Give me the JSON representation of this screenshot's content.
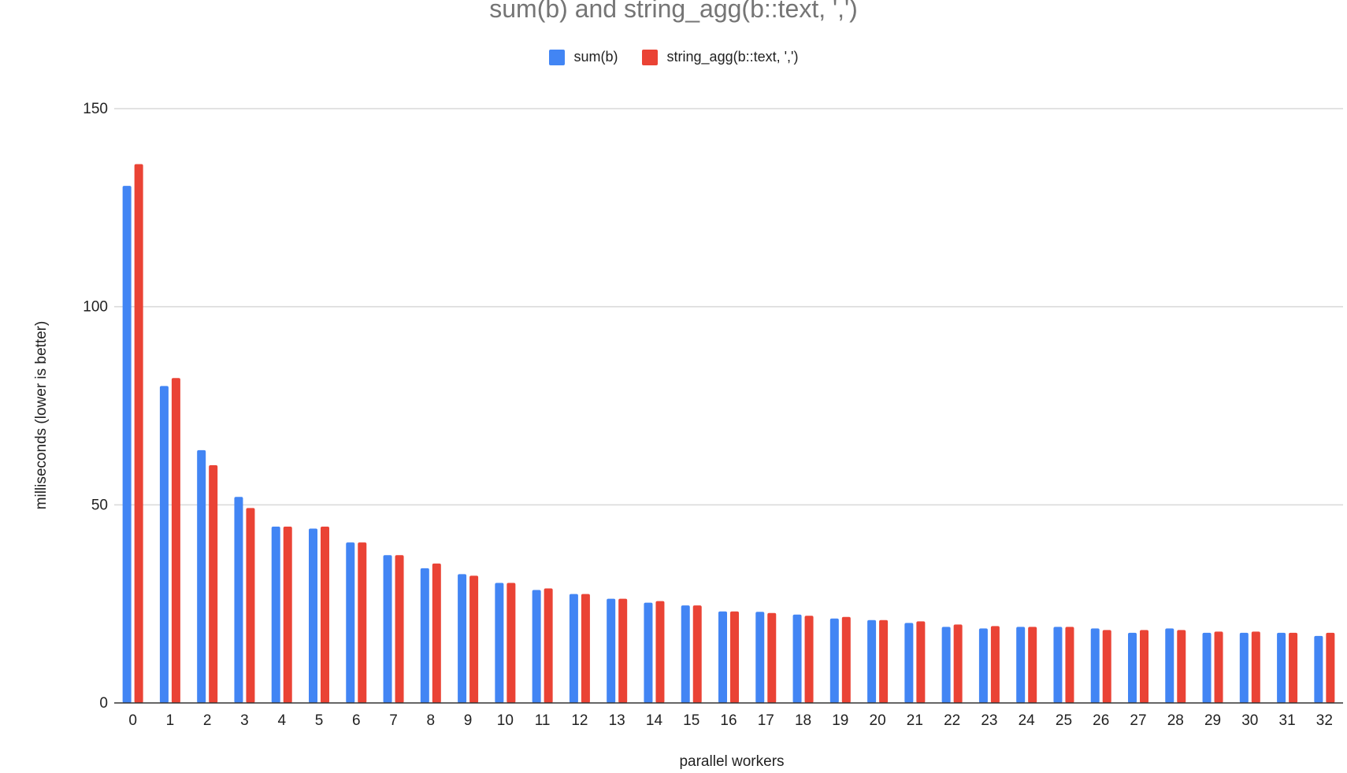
{
  "chart_data": {
    "type": "bar",
    "title": "sum(b) and string_agg(b::text, ',')",
    "xlabel": "parallel workers",
    "ylabel": "milliseconds (lower is better)",
    "ylim": [
      0,
      150
    ],
    "yticks": [
      0,
      50,
      100,
      150
    ],
    "grid": true,
    "legend_position": "top-center",
    "categories": [
      "0",
      "1",
      "2",
      "3",
      "4",
      "5",
      "6",
      "7",
      "8",
      "9",
      "10",
      "11",
      "12",
      "13",
      "14",
      "15",
      "16",
      "17",
      "18",
      "19",
      "20",
      "21",
      "22",
      "23",
      "24",
      "25",
      "26",
      "27",
      "28",
      "29",
      "30",
      "31",
      "32"
    ],
    "series": [
      {
        "name": "sum(b)",
        "color": "#4285f4",
        "values": [
          130.5,
          80,
          63.8,
          52,
          44.5,
          44,
          40.5,
          37.3,
          34,
          32.5,
          30.3,
          28.5,
          27.5,
          26.3,
          25.3,
          24.6,
          23.1,
          23,
          22.3,
          21.3,
          20.9,
          20.2,
          19.2,
          18.8,
          19.2,
          19.2,
          18.8,
          17.7,
          18.8,
          17.7,
          17.7,
          17.7,
          16.9
        ]
      },
      {
        "name": "string_agg(b::text, ',')",
        "color": "#ea4335",
        "values": [
          136,
          82,
          60,
          49.2,
          44.5,
          44.5,
          40.5,
          37.3,
          35.2,
          32.1,
          30.3,
          28.9,
          27.5,
          26.3,
          25.7,
          24.6,
          23.1,
          22.7,
          22,
          21.7,
          20.9,
          20.6,
          19.8,
          19.4,
          19.2,
          19.2,
          18.4,
          18.4,
          18.4,
          18,
          18,
          17.7,
          17.7
        ]
      }
    ]
  }
}
